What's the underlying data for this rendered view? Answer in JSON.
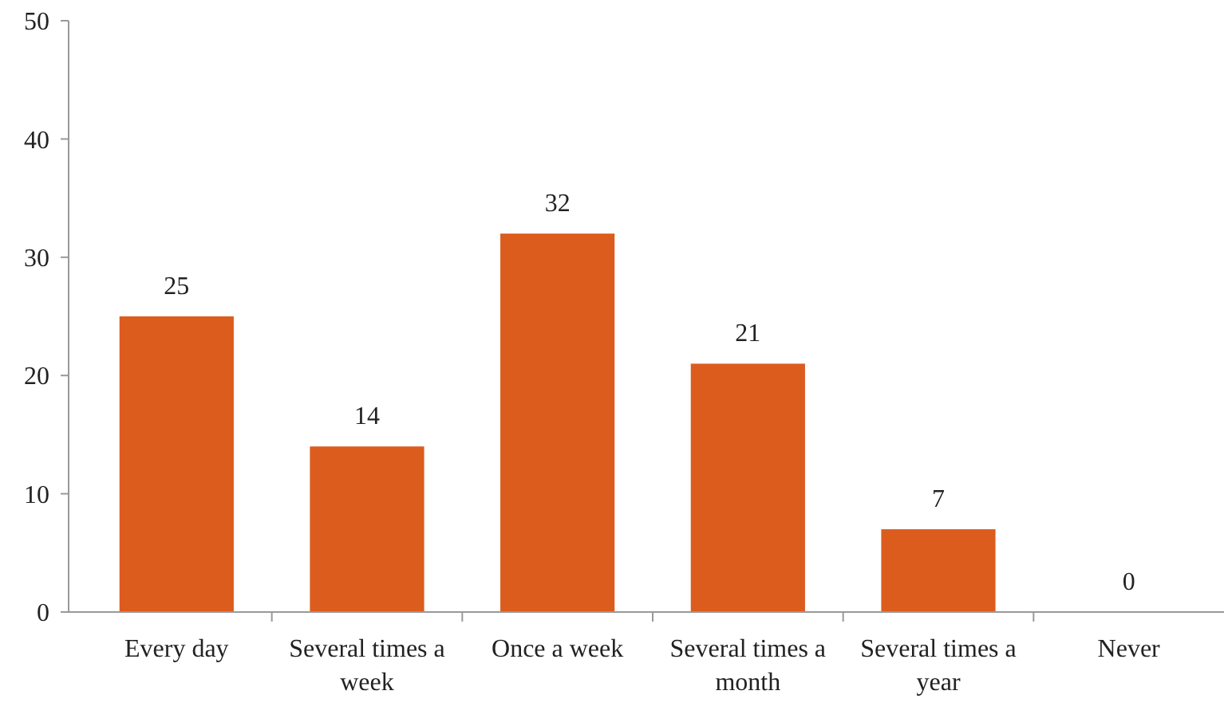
{
  "chart_data": {
    "type": "bar",
    "categories": [
      "Every day",
      "Several times a week",
      "Once a week",
      "Several times a month",
      "Several times a year",
      "Never"
    ],
    "values": [
      25,
      14,
      32,
      21,
      7,
      0
    ],
    "color": "#dc5c1e",
    "ylim": [
      0,
      50
    ],
    "yticks": [
      0,
      10,
      20,
      30,
      40,
      50
    ],
    "grid": false,
    "data_labels": true
  }
}
